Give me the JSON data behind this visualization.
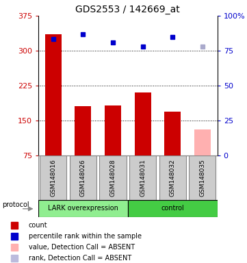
{
  "title": "GDS2553 / 142669_at",
  "samples": [
    "GSM148016",
    "GSM148026",
    "GSM148028",
    "GSM148031",
    "GSM148032",
    "GSM148035"
  ],
  "bar_values": [
    335,
    180,
    182,
    210,
    168,
    130
  ],
  "bar_colors": [
    "#cc0000",
    "#cc0000",
    "#cc0000",
    "#cc0000",
    "#cc0000",
    "#ffb0b0"
  ],
  "dot_values": [
    325,
    335,
    318,
    308,
    330,
    308
  ],
  "dot_colors": [
    "#0000cc",
    "#0000cc",
    "#0000cc",
    "#0000cc",
    "#0000cc",
    "#aaaacc"
  ],
  "ylim_left": [
    75,
    375
  ],
  "ylim_right": [
    0,
    100
  ],
  "yticks_left": [
    75,
    150,
    225,
    300,
    375
  ],
  "yticks_right": [
    0,
    25,
    50,
    75,
    100
  ],
  "ytick_right_labels": [
    "0",
    "25",
    "50",
    "75",
    "100%"
  ],
  "groups": [
    {
      "label": "LARK overexpression",
      "color": "#90ee90",
      "start": 0,
      "end": 3
    },
    {
      "label": "control",
      "color": "#44cc44",
      "start": 3,
      "end": 6
    }
  ],
  "protocol_label": "protocol",
  "background_color": "#ffffff",
  "bar_width": 0.55,
  "legend_items": [
    {
      "color": "#cc0000",
      "marker": "s",
      "label": "count"
    },
    {
      "color": "#0000cc",
      "marker": "s",
      "label": "percentile rank within the sample"
    },
    {
      "color": "#ffb0b0",
      "marker": "s",
      "label": "value, Detection Call = ABSENT"
    },
    {
      "color": "#bbbbdd",
      "marker": "s",
      "label": "rank, Detection Call = ABSENT"
    }
  ]
}
